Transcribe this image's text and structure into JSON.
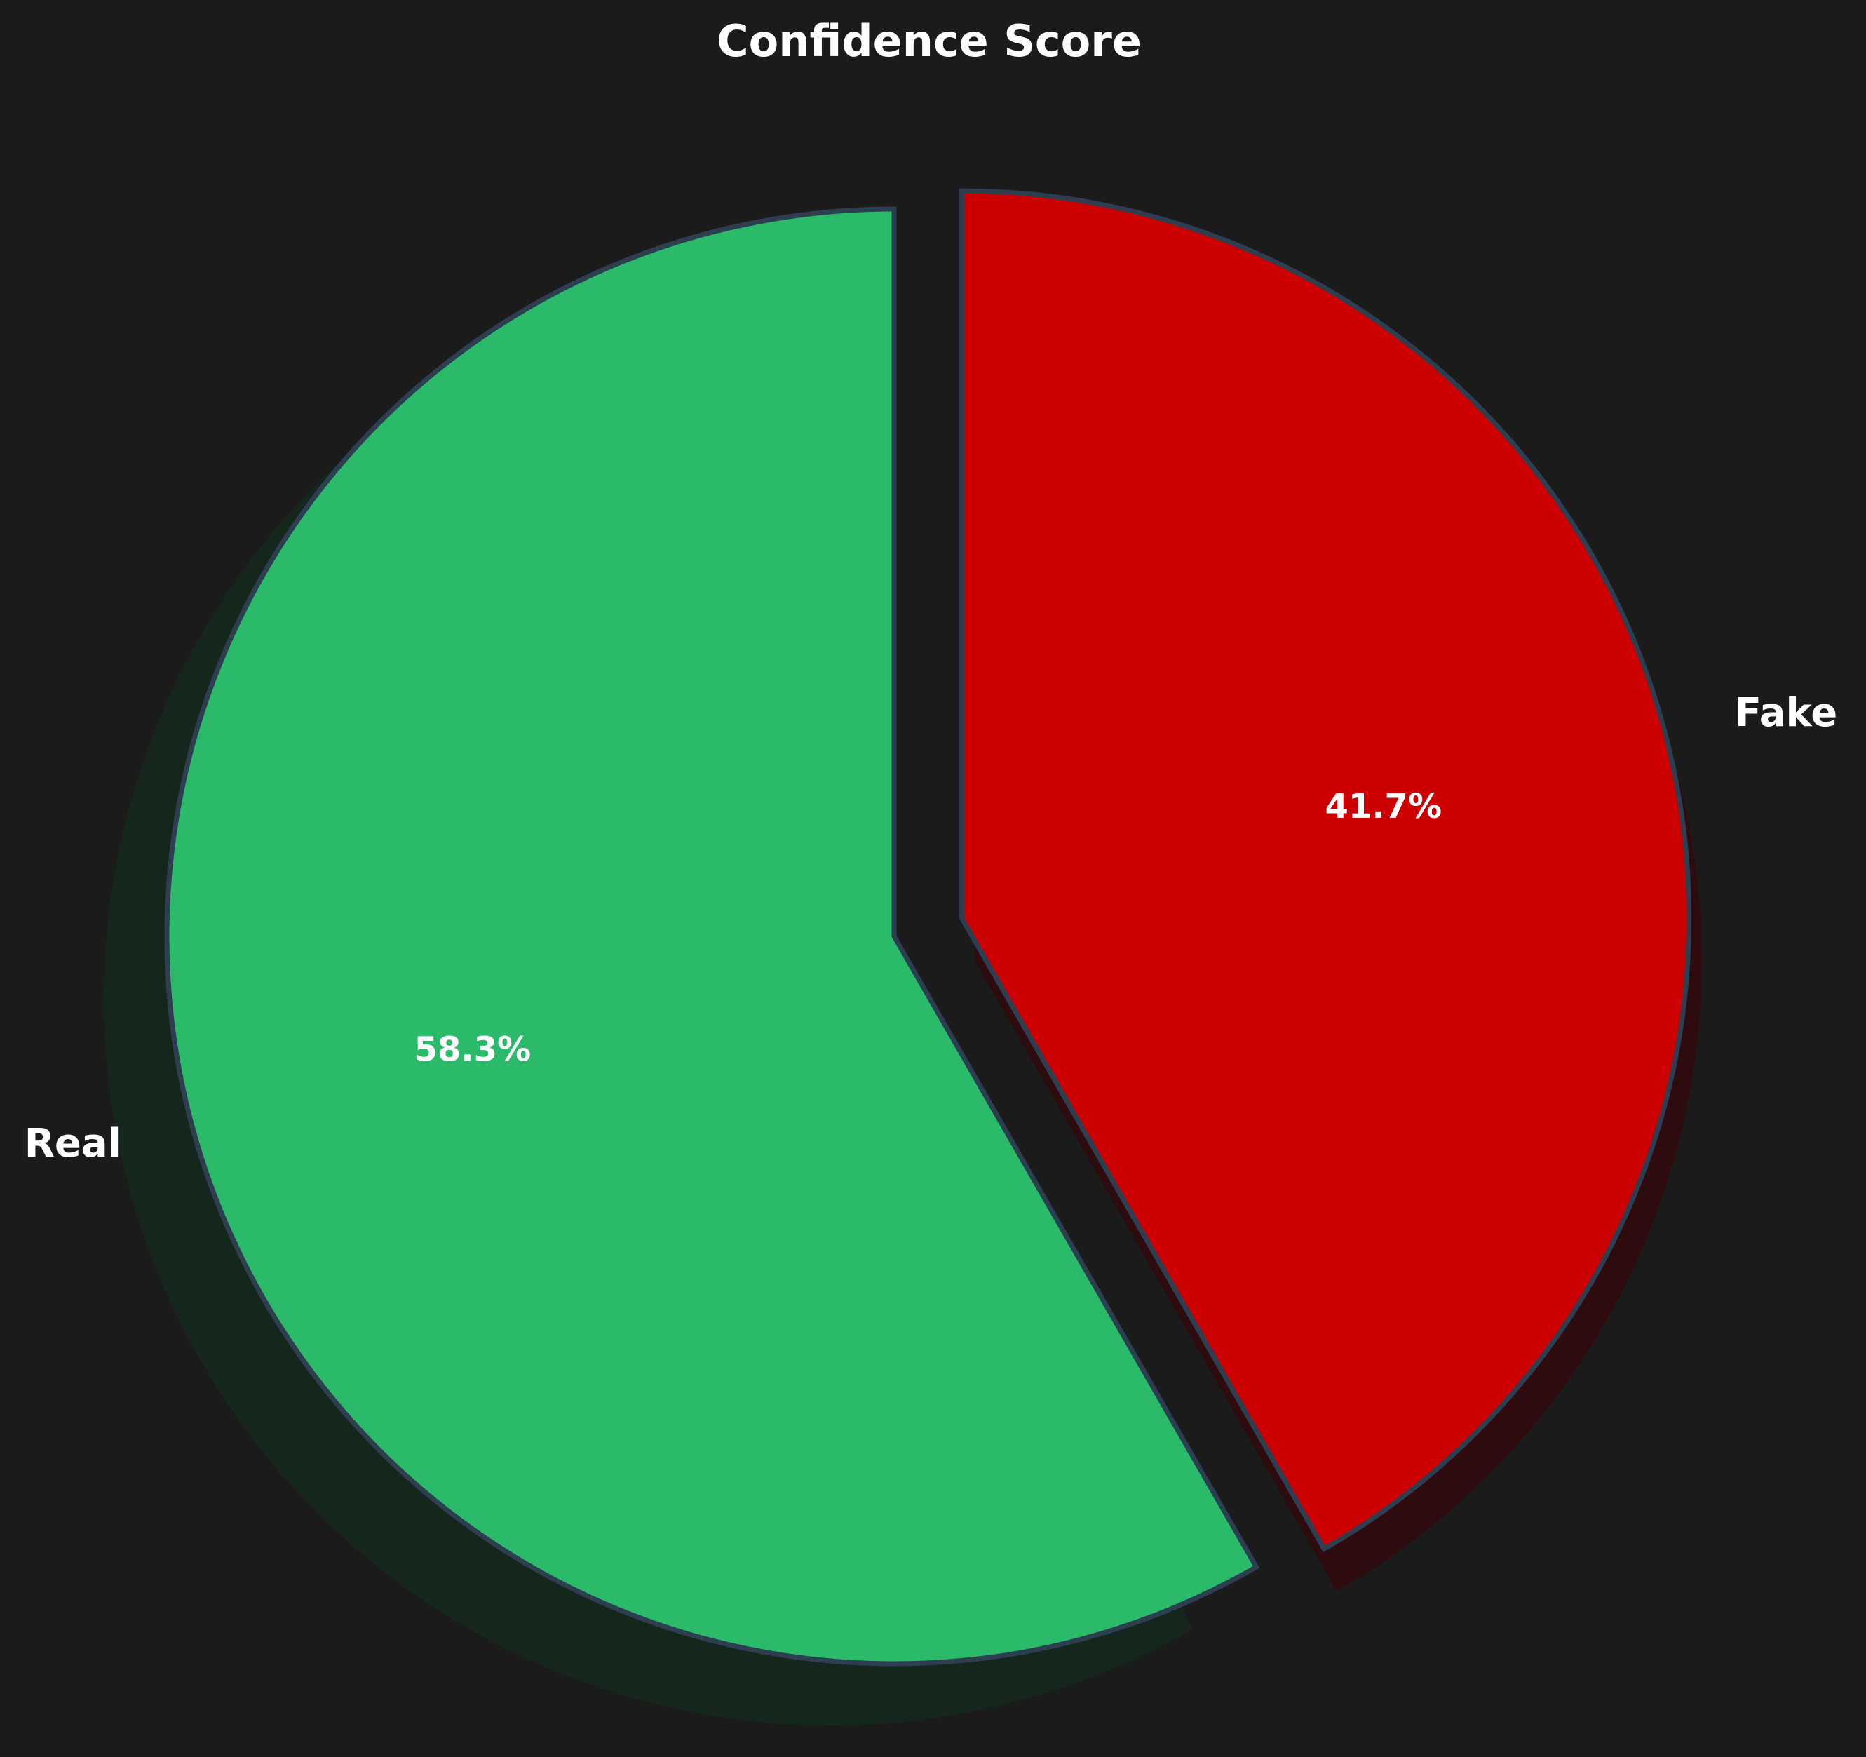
{
  "chart_data": {
    "type": "pie",
    "title": "Confidence Score",
    "categories": [
      "Real",
      "Fake"
    ],
    "values": [
      58.3,
      41.7
    ],
    "percent_labels": [
      "58.3%",
      "41.7%"
    ],
    "colors": [
      "#2aba6a",
      "#cc0000"
    ],
    "edge_color": "#2c3e50",
    "background": "#1b1b1b",
    "exploded": [
      "Fake"
    ],
    "shadow": true,
    "start_angle_deg": 90,
    "direction": "counterclockwise"
  }
}
